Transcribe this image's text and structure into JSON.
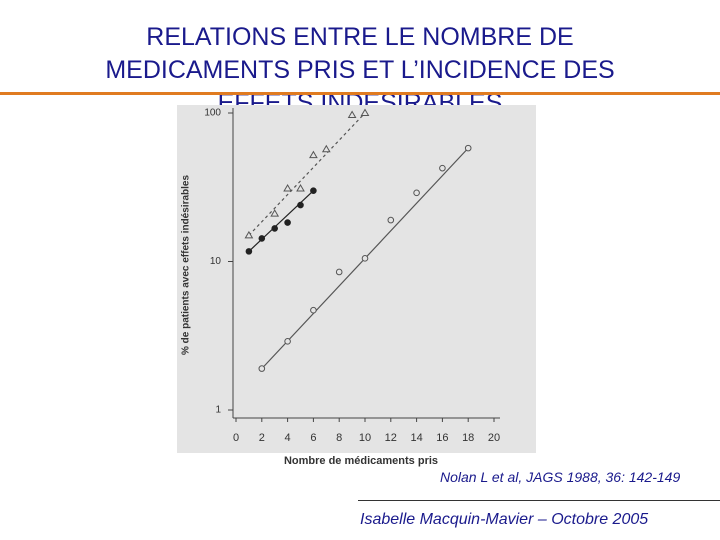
{
  "header": {
    "title_lines": [
      "RELATIONS ENTRE LE NOMBRE DE",
      "MEDICAMENTS PRIS ET L’INCIDENCE DES",
      "EFFETS INDESIRABLES"
    ]
  },
  "chart_data": {
    "type": "scatter",
    "log_y": true,
    "x_label": "Nombre de médicaments pris",
    "y_label": "% de patients avec effets indésirables",
    "xlim": [
      0,
      20
    ],
    "xticks": [
      0,
      2,
      4,
      6,
      8,
      10,
      12,
      14,
      16,
      18,
      20
    ],
    "ylim": [
      1,
      100
    ],
    "yticks": [
      1,
      10,
      100
    ],
    "series": [
      {
        "color": "#555555",
        "marker": "triangle",
        "line_style": "dashed",
        "x": [
          1,
          3,
          4,
          5,
          6,
          7,
          9,
          10
        ],
        "values": [
          15,
          21,
          31,
          31,
          52,
          57,
          97,
          100
        ]
      },
      {
        "color": "#222222",
        "marker": "filled-circle",
        "line_style": "solid",
        "x": [
          1,
          2,
          3,
          4,
          5,
          6
        ],
        "values": [
          11.7,
          14.3,
          16.7,
          18.3,
          24,
          30
        ]
      },
      {
        "color": "#555555",
        "marker": "open-circle",
        "line_style": "solid",
        "x": [
          2,
          4,
          6,
          8,
          10,
          12,
          14,
          16,
          18
        ],
        "values": [
          1.9,
          2.9,
          4.7,
          8.5,
          10.5,
          19,
          29,
          42.5,
          58
        ]
      }
    ]
  },
  "citation": "Nolan L et al, JAGS 1988, 36: 142-149",
  "footer": "Isabelle Macquin-Mavier – Octobre 2005"
}
